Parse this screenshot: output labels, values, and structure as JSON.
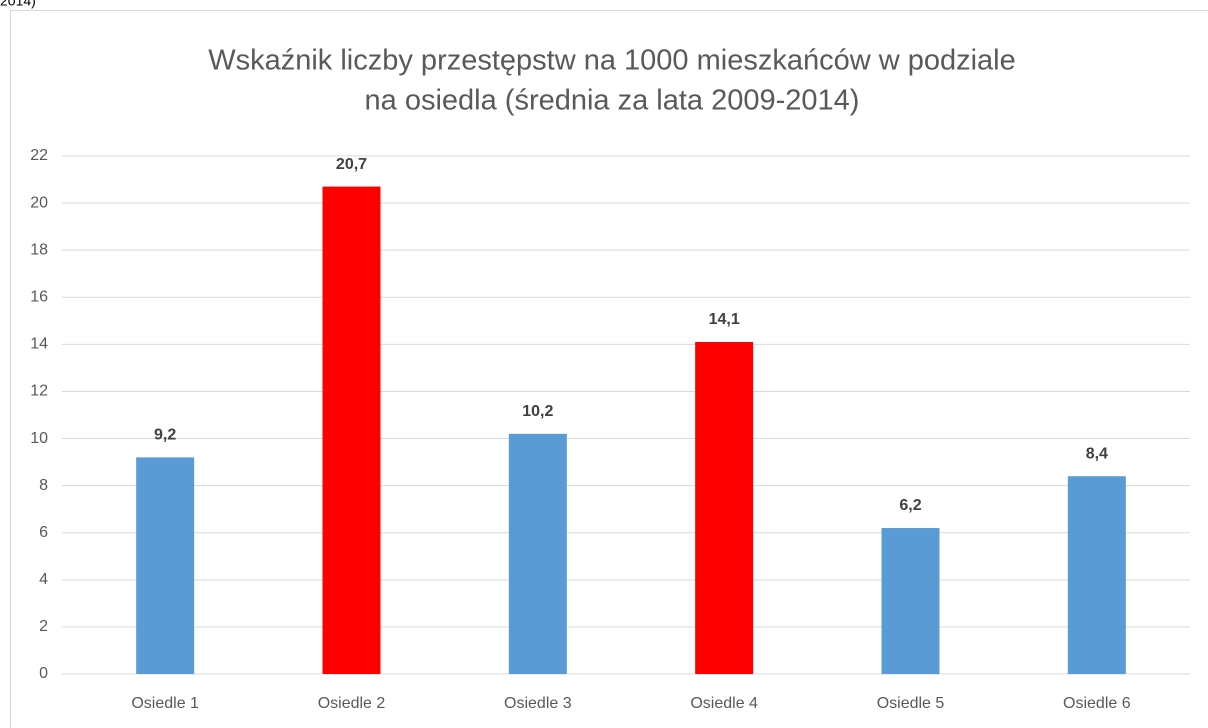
{
  "caption_fragment": "2014)",
  "chart_data": {
    "type": "bar",
    "title": [
      "Wskaźnik liczby przestępstw na 1000 mieszkańców w podziale",
      "na osiedla (średnia za lata 2009-2014)"
    ],
    "categories": [
      "Osiedle 1",
      "Osiedle 2",
      "Osiedle 3",
      "Osiedle 4",
      "Osiedle 5",
      "Osiedle 6"
    ],
    "values": [
      9.2,
      20.7,
      10.2,
      14.1,
      6.2,
      8.4
    ],
    "value_labels": [
      "9,2",
      "20,7",
      "10,2",
      "14,1",
      "6,2",
      "8,4"
    ],
    "colors": [
      "#5b9bd5",
      "#ff0000",
      "#5b9bd5",
      "#ff0000",
      "#5b9bd5",
      "#5b9bd5"
    ],
    "ylim": [
      0,
      22
    ],
    "yticks": [
      0,
      2,
      4,
      6,
      8,
      10,
      12,
      14,
      16,
      18,
      20,
      22
    ],
    "grid": true
  }
}
